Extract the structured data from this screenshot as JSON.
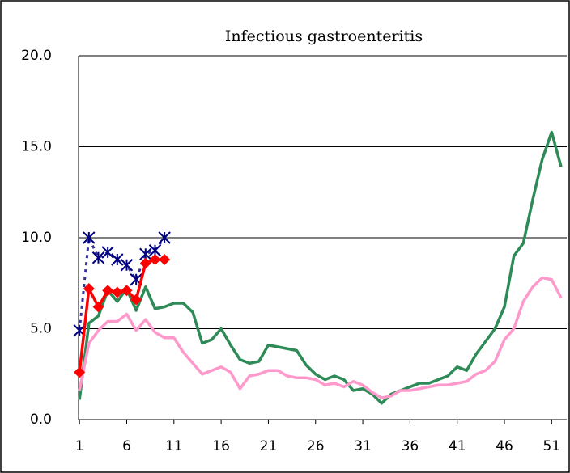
{
  "chart_data": {
    "type": "line",
    "title": "Infectious gastroenteritis",
    "x": [
      1,
      2,
      3,
      4,
      5,
      6,
      7,
      8,
      9,
      10,
      11,
      12,
      13,
      14,
      15,
      16,
      17,
      18,
      19,
      20,
      21,
      22,
      23,
      24,
      25,
      26,
      27,
      28,
      29,
      30,
      31,
      32,
      33,
      34,
      35,
      36,
      37,
      38,
      39,
      40,
      41,
      42,
      43,
      44,
      45,
      46,
      47,
      48,
      49,
      50,
      51,
      52
    ],
    "xlim": [
      0.9,
      52.6
    ],
    "xticks": [
      1,
      6,
      11,
      16,
      21,
      26,
      31,
      36,
      41,
      46,
      51
    ],
    "ylim": [
      0,
      20
    ],
    "yticks": [
      {
        "value": 0,
        "label": "0.0"
      },
      {
        "value": 5,
        "label": "5.0"
      },
      {
        "value": 10,
        "label": "10.0"
      },
      {
        "value": 15,
        "label": "15.0"
      },
      {
        "value": 20,
        "label": "20.0"
      }
    ],
    "grid": true,
    "series": [
      {
        "color": "#2e8b57",
        "values": [
          1.1,
          5.3,
          5.7,
          7.1,
          6.5,
          7.2,
          6.0,
          7.3,
          6.1,
          6.2,
          6.4,
          6.4,
          5.9,
          4.2,
          4.4,
          5.0,
          4.1,
          3.3,
          3.1,
          3.2,
          4.1,
          4.0,
          3.9,
          3.8,
          3.0,
          2.5,
          2.2,
          2.4,
          2.2,
          1.6,
          1.7,
          1.4,
          0.9,
          1.4,
          1.6,
          1.8,
          2.0,
          2.0,
          2.2,
          2.4,
          2.9,
          2.7,
          3.6,
          4.3,
          5.0,
          6.2,
          9.0,
          9.7,
          12.1,
          14.3,
          15.8,
          13.9
        ]
      },
      {
        "color": "#ff99cc",
        "values": [
          1.6,
          4.2,
          4.9,
          5.4,
          5.4,
          5.8,
          4.9,
          5.5,
          4.8,
          4.5,
          4.5,
          3.7,
          3.1,
          2.5,
          2.7,
          2.9,
          2.6,
          1.7,
          2.4,
          2.5,
          2.7,
          2.7,
          2.4,
          2.3,
          2.3,
          2.2,
          1.9,
          2.0,
          1.8,
          2.1,
          1.9,
          1.5,
          1.2,
          1.3,
          1.6,
          1.6,
          1.7,
          1.8,
          1.9,
          1.9,
          2.0,
          2.1,
          2.5,
          2.7,
          3.2,
          4.4,
          5.0,
          6.5,
          7.3,
          7.8,
          7.7,
          6.7
        ]
      },
      {
        "color": "#333399",
        "dash": true,
        "marker": "asterisk",
        "marker_color": "#000080",
        "values": [
          4.9,
          10.0,
          8.9,
          9.2,
          8.8,
          8.5,
          7.7,
          9.1,
          9.3,
          10.0,
          null,
          null,
          null,
          null,
          null,
          null,
          null,
          null,
          null,
          null,
          null,
          null,
          null,
          null,
          null,
          null,
          null,
          null,
          null,
          null,
          null,
          null,
          null,
          null,
          null,
          null,
          null,
          null,
          null,
          null,
          null,
          null,
          null,
          null,
          null,
          null,
          null,
          null,
          null,
          null,
          null,
          null
        ]
      },
      {
        "color": "#ff0000",
        "marker": "diamond",
        "marker_color": "#ff0000",
        "values": [
          2.6,
          7.2,
          6.2,
          7.1,
          7.0,
          7.1,
          6.6,
          8.6,
          8.8,
          8.8,
          null,
          null,
          null,
          null,
          null,
          null,
          null,
          null,
          null,
          null,
          null,
          null,
          null,
          null,
          null,
          null,
          null,
          null,
          null,
          null,
          null,
          null,
          null,
          null,
          null,
          null,
          null,
          null,
          null,
          null,
          null,
          null,
          null,
          null,
          null,
          null,
          null,
          null,
          null,
          null,
          null,
          null
        ]
      }
    ]
  }
}
